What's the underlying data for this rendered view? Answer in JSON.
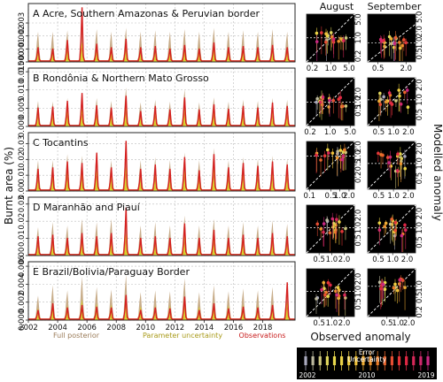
{
  "chart_data": {
    "type": "area",
    "ylabel": "Burnt area (%)",
    "x_ticks": [
      "2002",
      "2004",
      "2006",
      "2008",
      "2010",
      "2012",
      "2014",
      "2016",
      "2018"
    ],
    "legend": {
      "full": "Full posterior",
      "param": "Parameter uncertainty",
      "obs": "Observations"
    },
    "colors": {
      "full": "#c8ad8a",
      "param": "#d9d230",
      "obs": "#d42020",
      "median": "#e29a3a"
    },
    "panels": [
      {
        "title": "A Acre, Southern Amazonas & Peruvian border",
        "ylim": [
          0,
          0.0045
        ],
        "y_ticks": [
          "0.000",
          "0.001",
          "0.002",
          "0.003"
        ],
        "y_tick_values": [
          0,
          0.001,
          0.002,
          0.003
        ],
        "obs_peaks": [
          0.0012,
          0.0011,
          0.0018,
          0.0045,
          0.0015,
          0.0012,
          0.0019,
          0.0012,
          0.0013,
          0.0011,
          0.0014,
          0.0011,
          0.0016,
          0.0012,
          0.0013,
          0.0012,
          0.0014,
          0.0012
        ],
        "full_peaks": [
          0.0024,
          0.0024,
          0.0025,
          0.0027,
          0.0026,
          0.0024,
          0.0027,
          0.0024,
          0.0025,
          0.0024,
          0.0026,
          0.0024,
          0.0027,
          0.0024,
          0.0025,
          0.0024,
          0.0026,
          0.0024
        ],
        "param_peaks": [
          0.0013,
          0.0012,
          0.0014,
          0.0016,
          0.0014,
          0.0012,
          0.0015,
          0.0012,
          0.0013,
          0.0012,
          0.0014,
          0.0012,
          0.0015,
          0.0012,
          0.0013,
          0.0012,
          0.0014,
          0.0012
        ]
      },
      {
        "title": "B Rondônia & Northern Mato Grosso",
        "ylim": [
          0,
          0.016
        ],
        "y_ticks": [
          "0.000",
          "0.005",
          "0.010",
          "0.015"
        ],
        "y_tick_values": [
          0,
          0.005,
          0.01,
          0.015
        ],
        "obs_peaks": [
          0.0055,
          0.0058,
          0.0075,
          0.0098,
          0.0062,
          0.0055,
          0.009,
          0.0045,
          0.006,
          0.005,
          0.0085,
          0.005,
          0.0065,
          0.0052,
          0.006,
          0.0055,
          0.007,
          0.006
        ],
        "full_peaks": [
          0.0072,
          0.007,
          0.008,
          0.0088,
          0.008,
          0.0072,
          0.011,
          0.0068,
          0.0075,
          0.007,
          0.0105,
          0.0068,
          0.0082,
          0.007,
          0.0075,
          0.0072,
          0.008,
          0.0075
        ],
        "param_peaks": [
          0.004,
          0.0038,
          0.0045,
          0.005,
          0.0044,
          0.004,
          0.006,
          0.0036,
          0.0042,
          0.0038,
          0.0056,
          0.0037,
          0.0045,
          0.0038,
          0.0042,
          0.004,
          0.0044,
          0.0041
        ]
      },
      {
        "title": "C Tocantins",
        "ylim": [
          0,
          0.037
        ],
        "y_ticks": [
          "0.00",
          "0.01",
          "0.02",
          "0.03"
        ],
        "y_tick_values": [
          0,
          0.01,
          0.02,
          0.03
        ],
        "obs_peaks": [
          0.015,
          0.016,
          0.02,
          0.019,
          0.026,
          0.016,
          0.034,
          0.015,
          0.018,
          0.015,
          0.023,
          0.014,
          0.025,
          0.016,
          0.019,
          0.017,
          0.02,
          0.018
        ],
        "full_peaks": [
          0.02,
          0.02,
          0.024,
          0.023,
          0.026,
          0.02,
          0.03,
          0.02,
          0.022,
          0.02,
          0.025,
          0.02,
          0.028,
          0.02,
          0.022,
          0.021,
          0.023,
          0.021
        ],
        "param_peaks": [
          0.011,
          0.011,
          0.013,
          0.0125,
          0.014,
          0.011,
          0.016,
          0.011,
          0.012,
          0.011,
          0.0135,
          0.011,
          0.015,
          0.011,
          0.012,
          0.0115,
          0.0125,
          0.0115
        ]
      },
      {
        "title": "D Maranhão and Piauí",
        "ylim": [
          0,
          0.034
        ],
        "y_ticks": [
          "0.00",
          "0.01",
          "0.02",
          "0.03"
        ],
        "y_tick_values": [
          0,
          0.01,
          0.02,
          0.03
        ],
        "obs_peaks": [
          0.012,
          0.013,
          0.011,
          0.014,
          0.012,
          0.014,
          0.03,
          0.011,
          0.012,
          0.011,
          0.02,
          0.011,
          0.016,
          0.011,
          0.013,
          0.011,
          0.014,
          0.012
        ],
        "full_peaks": [
          0.017,
          0.02,
          0.018,
          0.022,
          0.02,
          0.022,
          0.026,
          0.018,
          0.02,
          0.018,
          0.024,
          0.018,
          0.022,
          0.018,
          0.02,
          0.018,
          0.021,
          0.019
        ],
        "param_peaks": [
          0.009,
          0.01,
          0.0095,
          0.011,
          0.01,
          0.011,
          0.013,
          0.0095,
          0.01,
          0.0095,
          0.012,
          0.0095,
          0.011,
          0.0095,
          0.01,
          0.0095,
          0.0105,
          0.01
        ]
      },
      {
        "title": "E Brazil/Bolivia/Paraguay Border",
        "ylim": [
          0,
          0.0065
        ],
        "y_ticks": [
          "0.000",
          "0.002",
          "0.004",
          "0.006"
        ],
        "y_tick_values": [
          0,
          0.002,
          0.004,
          0.006
        ],
        "obs_peaks": [
          0.0012,
          0.002,
          0.0015,
          0.0018,
          0.0016,
          0.0015,
          0.003,
          0.0012,
          0.0015,
          0.0014,
          0.0028,
          0.0012,
          0.002,
          0.0014,
          0.0016,
          0.0015,
          0.0018,
          0.0045
        ],
        "full_peaks": [
          0.0028,
          0.004,
          0.0034,
          0.005,
          0.0038,
          0.0035,
          0.0052,
          0.0032,
          0.0034,
          0.0033,
          0.0048,
          0.0032,
          0.004,
          0.0033,
          0.0036,
          0.0034,
          0.0038,
          0.0042
        ],
        "param_peaks": [
          0.0014,
          0.002,
          0.0017,
          0.0024,
          0.0019,
          0.0018,
          0.0026,
          0.0016,
          0.0017,
          0.0017,
          0.0024,
          0.0016,
          0.002,
          0.0017,
          0.0018,
          0.0017,
          0.0019,
          0.0021
        ]
      }
    ],
    "scatter": {
      "col_titles": [
        "August",
        "September"
      ],
      "xlabel": "Observed anomaly",
      "ylabel": "Modelled anomaly",
      "rows": [
        {
          "aug_x_ticks": [
            "0.2",
            "1.0",
            "5.0"
          ],
          "aug_x_vals": [
            0.2,
            1.0,
            5.0
          ],
          "aug_lim": [
            0.12,
            8
          ],
          "aug_y_ticks": [
            "0.2",
            "1.0",
            "5.0"
          ],
          "aug_y_vals": [
            0.2,
            1.0,
            5.0
          ],
          "sep_x_ticks": [
            "0.5",
            "2.0"
          ],
          "sep_x_vals": [
            0.5,
            2.0
          ],
          "sep_lim": [
            0.3,
            3.2
          ],
          "sep_y_ticks": [
            "0.5",
            "1.0",
            "2.0",
            "5.0"
          ],
          "sep_y_vals": [
            0.5,
            1.0,
            2.0,
            5.0
          ]
        },
        {
          "aug_x_ticks": [
            "0.2",
            "1.0",
            "5.0"
          ],
          "aug_x_vals": [
            0.2,
            1.0,
            5.0
          ],
          "aug_lim": [
            0.15,
            7
          ],
          "aug_y_ticks": [
            "0.5",
            "1.0",
            "2.0"
          ],
          "aug_y_vals": [
            0.5,
            1.0,
            2.0
          ],
          "sep_x_ticks": [
            "0.5",
            "1.0",
            "2.0"
          ],
          "sep_x_vals": [
            0.5,
            1.0,
            2.0
          ],
          "sep_lim": [
            0.3,
            2.8
          ],
          "sep_y_ticks": [
            "0.5",
            "1.0",
            "2.0"
          ],
          "sep_y_vals": [
            0.5,
            1.0,
            2.0
          ]
        },
        {
          "aug_x_ticks": [
            "0.1",
            "0.5",
            "1.0",
            "2.0"
          ],
          "aug_x_vals": [
            0.1,
            0.5,
            1.0,
            2.0
          ],
          "aug_lim": [
            0.08,
            3
          ],
          "aug_y_ticks": [
            "0.2",
            "0.5",
            "1.0",
            "2.0"
          ],
          "aug_y_vals": [
            0.2,
            0.5,
            1.0,
            2.0
          ],
          "sep_x_ticks": [
            "0.5",
            "1.0",
            "2.0"
          ],
          "sep_x_vals": [
            0.5,
            1.0,
            2.0
          ],
          "sep_lim": [
            0.3,
            2.8
          ],
          "sep_y_ticks": [
            "0.5",
            "1.0",
            "2.0"
          ],
          "sep_y_vals": [
            0.5,
            1.0,
            2.0
          ]
        },
        {
          "aug_x_ticks": [
            "0.5",
            "1.0",
            "2.0"
          ],
          "aug_x_vals": [
            0.5,
            1.0,
            2.0
          ],
          "aug_lim": [
            0.25,
            3.5
          ],
          "aug_y_ticks": [
            "0.5",
            "1.0",
            "2.0"
          ],
          "aug_y_vals": [
            0.5,
            1.0,
            2.0
          ],
          "sep_x_ticks": [
            "0.5",
            "1.0",
            "2.0"
          ],
          "sep_x_vals": [
            0.5,
            1.0,
            2.0
          ],
          "sep_lim": [
            0.3,
            3.0
          ],
          "sep_y_ticks": [
            "0.5",
            "1.0",
            "2.0"
          ],
          "sep_y_vals": [
            0.5,
            1.0,
            2.0
          ]
        },
        {
          "aug_x_ticks": [
            "0.5",
            "1.0",
            "2.0"
          ],
          "aug_x_vals": [
            0.5,
            1.0,
            2.0
          ],
          "aug_lim": [
            0.25,
            3.5
          ],
          "aug_y_ticks": [
            "0.5",
            "1.0",
            "2.0"
          ],
          "aug_y_vals": [
            0.5,
            1.0,
            2.0
          ],
          "sep_x_ticks": [
            "0.5",
            "1.0",
            "2.0"
          ],
          "sep_x_vals": [
            0.5,
            1.0,
            2.0
          ],
          "sep_lim": [
            0.15,
            3.0
          ],
          "sep_y_ticks": [
            "0.2",
            "0.5",
            "1.0"
          ],
          "sep_y_vals": [
            0.2,
            0.5,
            1.0
          ]
        }
      ]
    },
    "colorbar": {
      "label_error": "Error",
      "label_uncertainty": "Uncertainty",
      "start": "2002",
      "mid": "2010",
      "end": "2019"
    }
  }
}
